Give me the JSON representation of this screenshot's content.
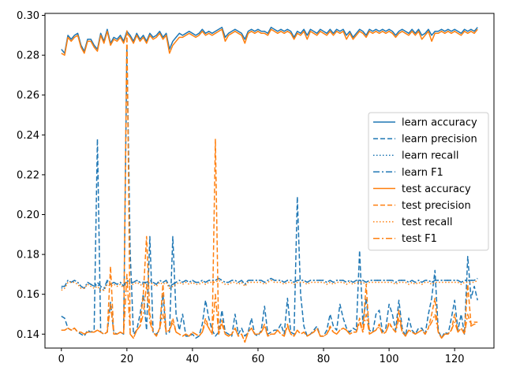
{
  "chart_data": {
    "type": "line",
    "x_ticks": [
      0,
      20,
      40,
      60,
      80,
      100,
      120
    ],
    "y_ticks": [
      0.14,
      0.16,
      0.18,
      0.2,
      0.22,
      0.24,
      0.26,
      0.28,
      0.3
    ],
    "xlim": [
      -5,
      132
    ],
    "ylim": [
      0.133,
      0.301
    ],
    "grid": false,
    "legend_position": "center-right",
    "series": [
      {
        "name": "learn accuracy",
        "color": "#1f77b4",
        "style": "solid",
        "values": [
          0.283,
          0.281,
          0.29,
          0.288,
          0.29,
          0.291,
          0.285,
          0.282,
          0.288,
          0.288,
          0.285,
          0.283,
          0.291,
          0.287,
          0.293,
          0.286,
          0.289,
          0.288,
          0.29,
          0.287,
          0.292,
          0.29,
          0.287,
          0.291,
          0.288,
          0.29,
          0.287,
          0.291,
          0.289,
          0.29,
          0.292,
          0.289,
          0.291,
          0.283,
          0.287,
          0.289,
          0.291,
          0.29,
          0.291,
          0.292,
          0.291,
          0.29,
          0.291,
          0.293,
          0.291,
          0.292,
          0.291,
          0.292,
          0.293,
          0.294,
          0.289,
          0.291,
          0.292,
          0.293,
          0.292,
          0.291,
          0.288,
          0.292,
          0.293,
          0.292,
          0.293,
          0.292,
          0.292,
          0.291,
          0.294,
          0.293,
          0.292,
          0.293,
          0.292,
          0.293,
          0.292,
          0.289,
          0.292,
          0.291,
          0.293,
          0.29,
          0.293,
          0.292,
          0.291,
          0.293,
          0.292,
          0.291,
          0.293,
          0.291,
          0.293,
          0.292,
          0.293,
          0.29,
          0.292,
          0.289,
          0.291,
          0.293,
          0.292,
          0.29,
          0.293,
          0.292,
          0.293,
          0.292,
          0.293,
          0.292,
          0.293,
          0.292,
          0.29,
          0.292,
          0.293,
          0.292,
          0.291,
          0.293,
          0.291,
          0.293,
          0.29,
          0.291,
          0.293,
          0.29,
          0.292,
          0.292,
          0.293,
          0.292,
          0.293,
          0.292,
          0.293,
          0.292,
          0.291,
          0.293,
          0.292,
          0.293,
          0.292,
          0.294
        ]
      },
      {
        "name": "learn precision",
        "color": "#1f77b4",
        "style": "dashed",
        "values": [
          0.149,
          0.148,
          0.143,
          0.142,
          0.143,
          0.141,
          0.14,
          0.139,
          0.142,
          0.141,
          0.142,
          0.238,
          0.141,
          0.14,
          0.141,
          0.156,
          0.141,
          0.14,
          0.141,
          0.14,
          0.285,
          0.181,
          0.14,
          0.142,
          0.15,
          0.16,
          0.142,
          0.189,
          0.141,
          0.14,
          0.142,
          0.16,
          0.14,
          0.141,
          0.189,
          0.15,
          0.142,
          0.15,
          0.139,
          0.139,
          0.14,
          0.138,
          0.139,
          0.145,
          0.157,
          0.148,
          0.142,
          0.139,
          0.141,
          0.152,
          0.141,
          0.14,
          0.139,
          0.15,
          0.14,
          0.143,
          0.139,
          0.141,
          0.148,
          0.14,
          0.139,
          0.142,
          0.154,
          0.14,
          0.141,
          0.142,
          0.142,
          0.145,
          0.14,
          0.158,
          0.141,
          0.14,
          0.209,
          0.16,
          0.144,
          0.139,
          0.14,
          0.142,
          0.144,
          0.139,
          0.139,
          0.142,
          0.15,
          0.144,
          0.142,
          0.155,
          0.148,
          0.143,
          0.141,
          0.143,
          0.142,
          0.182,
          0.145,
          0.158,
          0.142,
          0.141,
          0.15,
          0.152,
          0.141,
          0.143,
          0.155,
          0.15,
          0.142,
          0.157,
          0.143,
          0.139,
          0.148,
          0.142,
          0.14,
          0.143,
          0.143,
          0.14,
          0.15,
          0.158,
          0.172,
          0.142,
          0.138,
          0.141,
          0.14,
          0.148,
          0.157,
          0.142,
          0.15,
          0.14,
          0.179,
          0.158,
          0.164,
          0.157
        ]
      },
      {
        "name": "learn recall",
        "color": "#1f77b4",
        "style": "dotted",
        "values": [
          0.163,
          0.164,
          0.167,
          0.166,
          0.167,
          0.166,
          0.164,
          0.163,
          0.166,
          0.165,
          0.164,
          0.165,
          0.163,
          0.162,
          0.166,
          0.165,
          0.166,
          0.165,
          0.166,
          0.164,
          0.167,
          0.165,
          0.166,
          0.167,
          0.166,
          0.165,
          0.166,
          0.167,
          0.166,
          0.165,
          0.167,
          0.166,
          0.167,
          0.164,
          0.165,
          0.166,
          0.167,
          0.166,
          0.167,
          0.166,
          0.167,
          0.166,
          0.166,
          0.167,
          0.166,
          0.167,
          0.167,
          0.167,
          0.168,
          0.167,
          0.166,
          0.166,
          0.167,
          0.167,
          0.166,
          0.167,
          0.165,
          0.167,
          0.167,
          0.167,
          0.167,
          0.167,
          0.166,
          0.167,
          0.168,
          0.167,
          0.167,
          0.167,
          0.166,
          0.167,
          0.167,
          0.166,
          0.167,
          0.167,
          0.167,
          0.166,
          0.167,
          0.167,
          0.167,
          0.167,
          0.167,
          0.166,
          0.167,
          0.166,
          0.167,
          0.167,
          0.167,
          0.166,
          0.167,
          0.166,
          0.167,
          0.167,
          0.167,
          0.166,
          0.167,
          0.167,
          0.167,
          0.167,
          0.167,
          0.167,
          0.167,
          0.167,
          0.166,
          0.167,
          0.167,
          0.167,
          0.166,
          0.167,
          0.166,
          0.167,
          0.166,
          0.167,
          0.167,
          0.166,
          0.167,
          0.167,
          0.167,
          0.167,
          0.167,
          0.167,
          0.167,
          0.167,
          0.166,
          0.167,
          0.167,
          0.167,
          0.167,
          0.168
        ]
      },
      {
        "name": "learn F1",
        "color": "#1f77b4",
        "style": "dashdot",
        "values": [
          0.164,
          0.164,
          0.167,
          0.166,
          0.167,
          0.166,
          0.164,
          0.163,
          0.166,
          0.165,
          0.164,
          0.166,
          0.164,
          0.163,
          0.167,
          0.165,
          0.166,
          0.165,
          0.166,
          0.164,
          0.167,
          0.166,
          0.166,
          0.167,
          0.166,
          0.166,
          0.166,
          0.167,
          0.166,
          0.165,
          0.167,
          0.166,
          0.167,
          0.164,
          0.165,
          0.166,
          0.167,
          0.166,
          0.167,
          0.166,
          0.167,
          0.166,
          0.166,
          0.167,
          0.166,
          0.167,
          0.167,
          0.167,
          0.168,
          0.167,
          0.166,
          0.166,
          0.167,
          0.167,
          0.166,
          0.167,
          0.165,
          0.167,
          0.167,
          0.167,
          0.167,
          0.167,
          0.166,
          0.167,
          0.168,
          0.167,
          0.167,
          0.167,
          0.166,
          0.167,
          0.167,
          0.166,
          0.167,
          0.167,
          0.167,
          0.166,
          0.167,
          0.167,
          0.167,
          0.167,
          0.167,
          0.166,
          0.167,
          0.166,
          0.167,
          0.167,
          0.167,
          0.166,
          0.167,
          0.166,
          0.167,
          0.167,
          0.167,
          0.166,
          0.167,
          0.167,
          0.167,
          0.167,
          0.167,
          0.167,
          0.167,
          0.167,
          0.166,
          0.167,
          0.167,
          0.167,
          0.166,
          0.167,
          0.166,
          0.167,
          0.166,
          0.167,
          0.167,
          0.166,
          0.167,
          0.167,
          0.167,
          0.167,
          0.167,
          0.167,
          0.167,
          0.167,
          0.166,
          0.167,
          0.167,
          0.167,
          0.167,
          0.168
        ]
      },
      {
        "name": "test accuracy",
        "color": "#ff7f0e",
        "style": "solid",
        "values": [
          0.281,
          0.28,
          0.289,
          0.287,
          0.289,
          0.29,
          0.284,
          0.281,
          0.287,
          0.287,
          0.284,
          0.282,
          0.29,
          0.286,
          0.292,
          0.285,
          0.288,
          0.287,
          0.289,
          0.286,
          0.291,
          0.289,
          0.286,
          0.29,
          0.287,
          0.289,
          0.286,
          0.29,
          0.288,
          0.289,
          0.291,
          0.288,
          0.29,
          0.281,
          0.285,
          0.287,
          0.289,
          0.289,
          0.29,
          0.291,
          0.29,
          0.289,
          0.29,
          0.292,
          0.29,
          0.291,
          0.29,
          0.291,
          0.292,
          0.293,
          0.287,
          0.29,
          0.291,
          0.292,
          0.291,
          0.29,
          0.286,
          0.291,
          0.292,
          0.291,
          0.292,
          0.291,
          0.291,
          0.29,
          0.293,
          0.292,
          0.291,
          0.292,
          0.291,
          0.292,
          0.291,
          0.288,
          0.291,
          0.29,
          0.292,
          0.288,
          0.292,
          0.291,
          0.29,
          0.292,
          0.291,
          0.29,
          0.292,
          0.29,
          0.292,
          0.291,
          0.292,
          0.288,
          0.291,
          0.288,
          0.29,
          0.292,
          0.291,
          0.289,
          0.292,
          0.291,
          0.292,
          0.291,
          0.292,
          0.291,
          0.292,
          0.291,
          0.289,
          0.291,
          0.292,
          0.291,
          0.29,
          0.292,
          0.29,
          0.292,
          0.288,
          0.29,
          0.292,
          0.287,
          0.291,
          0.291,
          0.292,
          0.291,
          0.292,
          0.291,
          0.292,
          0.291,
          0.29,
          0.292,
          0.291,
          0.292,
          0.291,
          0.293
        ]
      },
      {
        "name": "test precision",
        "color": "#ff7f0e",
        "style": "dashed",
        "values": [
          0.142,
          0.142,
          0.143,
          0.142,
          0.143,
          0.141,
          0.141,
          0.14,
          0.141,
          0.141,
          0.141,
          0.142,
          0.141,
          0.14,
          0.141,
          0.174,
          0.14,
          0.14,
          0.141,
          0.14,
          0.293,
          0.14,
          0.138,
          0.142,
          0.144,
          0.16,
          0.189,
          0.15,
          0.141,
          0.139,
          0.143,
          0.165,
          0.141,
          0.142,
          0.148,
          0.141,
          0.14,
          0.139,
          0.14,
          0.139,
          0.141,
          0.14,
          0.139,
          0.141,
          0.148,
          0.143,
          0.14,
          0.238,
          0.14,
          0.147,
          0.14,
          0.139,
          0.14,
          0.143,
          0.139,
          0.14,
          0.136,
          0.141,
          0.143,
          0.14,
          0.14,
          0.141,
          0.145,
          0.139,
          0.14,
          0.14,
          0.142,
          0.14,
          0.139,
          0.145,
          0.14,
          0.139,
          0.142,
          0.14,
          0.141,
          0.139,
          0.14,
          0.141,
          0.143,
          0.139,
          0.139,
          0.14,
          0.144,
          0.141,
          0.14,
          0.142,
          0.143,
          0.142,
          0.14,
          0.141,
          0.141,
          0.148,
          0.141,
          0.165,
          0.14,
          0.141,
          0.142,
          0.145,
          0.14,
          0.141,
          0.146,
          0.143,
          0.141,
          0.152,
          0.141,
          0.139,
          0.142,
          0.141,
          0.14,
          0.141,
          0.142,
          0.14,
          0.143,
          0.15,
          0.158,
          0.141,
          0.138,
          0.14,
          0.14,
          0.142,
          0.15,
          0.141,
          0.143,
          0.14,
          0.165,
          0.145,
          0.146,
          0.146
        ]
      },
      {
        "name": "test recall",
        "color": "#ff7f0e",
        "style": "dotted",
        "values": [
          0.162,
          0.163,
          0.166,
          0.166,
          0.166,
          0.165,
          0.163,
          0.163,
          0.165,
          0.164,
          0.163,
          0.164,
          0.162,
          0.162,
          0.165,
          0.164,
          0.165,
          0.164,
          0.165,
          0.163,
          0.166,
          0.165,
          0.165,
          0.166,
          0.165,
          0.164,
          0.165,
          0.166,
          0.165,
          0.164,
          0.166,
          0.165,
          0.166,
          0.163,
          0.164,
          0.165,
          0.166,
          0.165,
          0.166,
          0.165,
          0.166,
          0.165,
          0.165,
          0.166,
          0.165,
          0.166,
          0.166,
          0.166,
          0.167,
          0.166,
          0.165,
          0.165,
          0.166,
          0.166,
          0.165,
          0.166,
          0.164,
          0.166,
          0.166,
          0.166,
          0.166,
          0.166,
          0.165,
          0.166,
          0.167,
          0.166,
          0.166,
          0.166,
          0.165,
          0.166,
          0.166,
          0.165,
          0.166,
          0.166,
          0.166,
          0.165,
          0.166,
          0.166,
          0.166,
          0.166,
          0.166,
          0.165,
          0.166,
          0.165,
          0.166,
          0.166,
          0.166,
          0.165,
          0.166,
          0.165,
          0.166,
          0.166,
          0.166,
          0.165,
          0.166,
          0.166,
          0.166,
          0.166,
          0.166,
          0.166,
          0.166,
          0.166,
          0.165,
          0.166,
          0.166,
          0.166,
          0.165,
          0.166,
          0.165,
          0.166,
          0.165,
          0.166,
          0.166,
          0.165,
          0.166,
          0.166,
          0.166,
          0.166,
          0.166,
          0.166,
          0.166,
          0.166,
          0.165,
          0.166,
          0.166,
          0.166,
          0.166,
          0.167
        ]
      },
      {
        "name": "test F1",
        "color": "#ff7f0e",
        "style": "dashdot",
        "values": [
          0.142,
          0.142,
          0.143,
          0.142,
          0.143,
          0.141,
          0.141,
          0.14,
          0.141,
          0.141,
          0.141,
          0.142,
          0.141,
          0.14,
          0.141,
          0.155,
          0.14,
          0.14,
          0.141,
          0.14,
          0.17,
          0.14,
          0.138,
          0.142,
          0.144,
          0.15,
          0.165,
          0.146,
          0.141,
          0.139,
          0.143,
          0.15,
          0.141,
          0.142,
          0.146,
          0.141,
          0.14,
          0.139,
          0.14,
          0.139,
          0.141,
          0.14,
          0.139,
          0.141,
          0.146,
          0.143,
          0.14,
          0.16,
          0.14,
          0.145,
          0.14,
          0.139,
          0.14,
          0.143,
          0.139,
          0.14,
          0.136,
          0.141,
          0.143,
          0.14,
          0.14,
          0.141,
          0.144,
          0.139,
          0.14,
          0.14,
          0.142,
          0.14,
          0.139,
          0.144,
          0.14,
          0.139,
          0.142,
          0.14,
          0.141,
          0.139,
          0.14,
          0.141,
          0.143,
          0.139,
          0.139,
          0.14,
          0.143,
          0.141,
          0.14,
          0.142,
          0.143,
          0.142,
          0.14,
          0.141,
          0.141,
          0.146,
          0.141,
          0.15,
          0.14,
          0.141,
          0.142,
          0.144,
          0.14,
          0.141,
          0.145,
          0.143,
          0.141,
          0.148,
          0.141,
          0.139,
          0.142,
          0.141,
          0.14,
          0.141,
          0.142,
          0.14,
          0.143,
          0.146,
          0.15,
          0.141,
          0.138,
          0.14,
          0.14,
          0.142,
          0.146,
          0.141,
          0.143,
          0.14,
          0.15,
          0.144,
          0.145,
          0.145
        ]
      }
    ]
  }
}
